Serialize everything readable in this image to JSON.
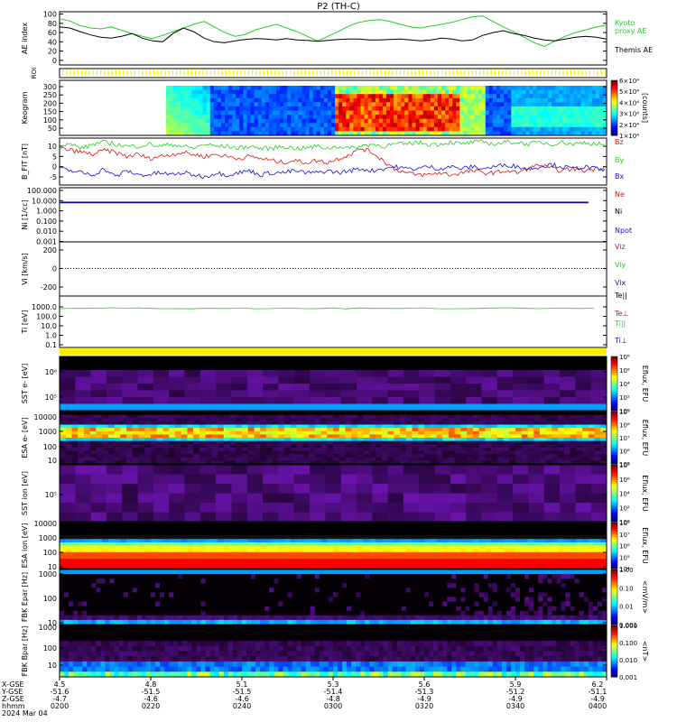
{
  "title": "P2 (TH-C)",
  "colors": {
    "green": "#22cc22",
    "red": "#dd1111",
    "blue": "#1111dd",
    "yellow": "#ffee00",
    "black": "#000000"
  },
  "chart_data": [
    {
      "id": "ae",
      "type": "line",
      "ylabel": "AE index",
      "yticks": [
        0,
        20,
        40,
        60,
        80,
        100
      ],
      "ylim": [
        -10,
        105
      ],
      "series": [
        {
          "name": "Kyoto proxy AE",
          "color": "#22cc22",
          "values": [
            90,
            85,
            75,
            70,
            68,
            72,
            65,
            58,
            52,
            47,
            54,
            62,
            70,
            78,
            84,
            72,
            60,
            52,
            56,
            66,
            72,
            78,
            70,
            62,
            52,
            42,
            52,
            62,
            74,
            82,
            86,
            88,
            84,
            78,
            72,
            70,
            74,
            78,
            82,
            88,
            94,
            96,
            84,
            72,
            62,
            50,
            38,
            30,
            42,
            52,
            60,
            66,
            72,
            76
          ]
        },
        {
          "name": "Themis AE",
          "color": "#000000",
          "values": [
            72,
            70,
            62,
            55,
            50,
            48,
            52,
            58,
            48,
            42,
            40,
            58,
            70,
            62,
            48,
            40,
            38,
            42,
            45,
            47,
            46,
            44,
            47,
            44,
            43,
            41,
            43,
            45,
            46,
            46,
            44,
            44,
            45,
            46,
            44,
            42,
            44,
            48,
            46,
            42,
            44,
            54,
            60,
            64,
            58,
            54,
            48,
            44,
            42,
            46,
            50,
            52,
            50,
            46
          ]
        }
      ]
    },
    {
      "id": "keogram",
      "type": "heatmap",
      "ylabel": "Keogram",
      "yticks": [
        50,
        100,
        150,
        200,
        250,
        300
      ],
      "colorbar": {
        "label": "[counts]",
        "ticks": [
          "6×10⁴",
          "5×10⁴",
          "4×10⁴",
          "3×10⁴",
          "2×10⁴",
          "1×10⁴"
        ]
      }
    },
    {
      "id": "bfield",
      "type": "line",
      "ylabel": "B_FIT [nT]",
      "yticks": [
        -5,
        0,
        5,
        10
      ],
      "ylim": [
        -9,
        14
      ],
      "series": [
        {
          "name": "Bz",
          "color": "#dd1111",
          "values": [
            9,
            8,
            7,
            6,
            8,
            7,
            5,
            6,
            4,
            5,
            6,
            7,
            6,
            5,
            6,
            5,
            4,
            5,
            4,
            3,
            2,
            3,
            2,
            3,
            2,
            4,
            6,
            9,
            7,
            3,
            -1,
            -3,
            -4,
            -4,
            -3,
            -4,
            -3,
            -2,
            -3,
            -3,
            -2,
            -3,
            -1,
            1,
            -1,
            -2,
            -1,
            -2,
            -1,
            0
          ]
        },
        {
          "name": "By",
          "color": "#22cc22",
          "values": [
            10,
            11,
            9,
            11,
            12,
            11,
            10,
            10,
            11,
            10,
            11,
            10,
            9,
            11,
            10,
            10,
            9,
            10,
            9,
            9,
            10,
            9,
            9,
            10,
            9,
            10,
            9,
            10,
            11,
            10,
            11,
            11,
            12,
            11,
            11,
            12,
            11,
            12,
            12,
            11,
            12,
            12,
            11,
            12,
            11,
            12,
            11,
            12,
            11,
            11
          ]
        },
        {
          "name": "Bx",
          "color": "#1111dd",
          "values": [
            -1,
            -2,
            -3,
            -4,
            -1,
            -5,
            -2,
            -4,
            -4,
            -3,
            -4,
            -3,
            -4,
            -5,
            -3,
            -4,
            -3,
            -2,
            -4,
            -3,
            -3,
            -2,
            -3,
            -3,
            -2,
            -3,
            -2,
            -1,
            -2,
            -1,
            0,
            -1,
            -1,
            0,
            -1,
            0,
            -1,
            0,
            -1,
            0,
            1,
            0,
            -1,
            0,
            1,
            0,
            -1,
            0,
            -1,
            -2
          ]
        }
      ]
    },
    {
      "id": "density",
      "type": "line",
      "ylabel": "Ni [1/cc]",
      "yticks": [
        "100.000",
        "10.000",
        "1.000",
        "0.100",
        "0.010",
        "0.001"
      ],
      "series": [
        {
          "name": "Ne",
          "color": "#dd1111",
          "value": 7.5
        },
        {
          "name": "Ni",
          "color": "#000000",
          "value": 6.5
        },
        {
          "name": "Npot",
          "color": "#1111dd",
          "value": 6.0
        }
      ]
    },
    {
      "id": "velocity",
      "type": "line",
      "ylabel": "Vi [km/s]",
      "yticks": [
        200,
        0,
        -200
      ],
      "series": [
        {
          "name": "Viz",
          "color": "#dd1111"
        },
        {
          "name": "Viy",
          "color": "#22cc22"
        },
        {
          "name": "Vix",
          "color": "#1111dd"
        }
      ]
    },
    {
      "id": "temperature",
      "type": "line",
      "ylabel": "Ti [eV]",
      "yticks": [
        "1000.0",
        "100.0",
        "10.0",
        "1.0",
        "0.1"
      ],
      "series": [
        {
          "name": "Te||",
          "color": "#000000"
        },
        {
          "name": "Te⊥",
          "color": "#dd1111"
        },
        {
          "name": "Ti||",
          "color": "#22cc22",
          "value": 700
        },
        {
          "name": "Ti⊥",
          "color": "#1111dd"
        }
      ]
    },
    {
      "id": "sst_e",
      "type": "heatmap",
      "ylabel": "SST e- [eV]",
      "yticks": [
        "10⁶",
        "10⁵"
      ],
      "colorbar": {
        "label": "Eflux, EFU",
        "ticks": [
          "10⁸",
          "10⁶",
          "10⁴",
          "10²",
          "10⁰"
        ]
      }
    },
    {
      "id": "esa_e",
      "type": "heatmap",
      "ylabel": "ESA e- [eV]",
      "yticks": [
        "10000",
        "1000",
        "100",
        "10"
      ],
      "colorbar": {
        "label": "Eflux, EFU",
        "ticks": [
          "10⁹",
          "10⁸",
          "10⁷",
          "10⁶",
          "10⁵"
        ]
      }
    },
    {
      "id": "sst_i",
      "type": "heatmap",
      "ylabel": "SST ion [eV]",
      "yticks": [
        "10⁵"
      ],
      "colorbar": {
        "label": "Eflux, EFU",
        "ticks": [
          "10⁸",
          "10⁶",
          "10⁴",
          "10²",
          "10⁰"
        ]
      }
    },
    {
      "id": "esa_i",
      "type": "heatmap",
      "ylabel": "ESA ion [eV]",
      "yticks": [
        "10000",
        "1000",
        "100",
        "10"
      ],
      "colorbar": {
        "label": "Eflux, EFU",
        "ticks": [
          "10⁸",
          "10⁷",
          "10⁶",
          "10⁵",
          "10⁴"
        ]
      }
    },
    {
      "id": "fbk_e",
      "type": "heatmap",
      "ylabel": "FBK Epar [Hz]",
      "yticks": [
        "1000",
        "100",
        "10"
      ],
      "colorbar": {
        "label": "<mV/m>",
        "ticks": [
          "1.00",
          "0.10",
          "0.01",
          "0.001"
        ]
      }
    },
    {
      "id": "fbk_b",
      "type": "heatmap",
      "ylabel": "FBK Bpar [Hz]",
      "yticks": [
        "1000",
        "100",
        "10"
      ],
      "colorbar": {
        "label": "<nT>",
        "ticks": [
          "1.000",
          "0.100",
          "0.010",
          "0.001"
        ]
      }
    }
  ],
  "xaxis": {
    "row_labels": [
      "X-GSE",
      "Y-GSE",
      "Z-GSE",
      "hhmm",
      "2024 Mar 04"
    ],
    "ticks": [
      {
        "x": "4.5",
        "y": "-51.6",
        "z": "-4.7",
        "t": "0200"
      },
      {
        "x": "4.8",
        "y": "-51.5",
        "z": "-4.6",
        "t": "0220"
      },
      {
        "x": "5.1",
        "y": "-51.5",
        "z": "-4.6",
        "t": "0240"
      },
      {
        "x": "5.3",
        "y": "-51.4",
        "z": "-4.8",
        "t": "0300"
      },
      {
        "x": "5.6",
        "y": "-51.3",
        "z": "-4.9",
        "t": "0320"
      },
      {
        "x": "5.9",
        "y": "-51.2",
        "z": "-4.9",
        "t": "0340"
      },
      {
        "x": "6.2",
        "y": "-51.1",
        "z": "-4.9",
        "t": "0400"
      }
    ]
  }
}
